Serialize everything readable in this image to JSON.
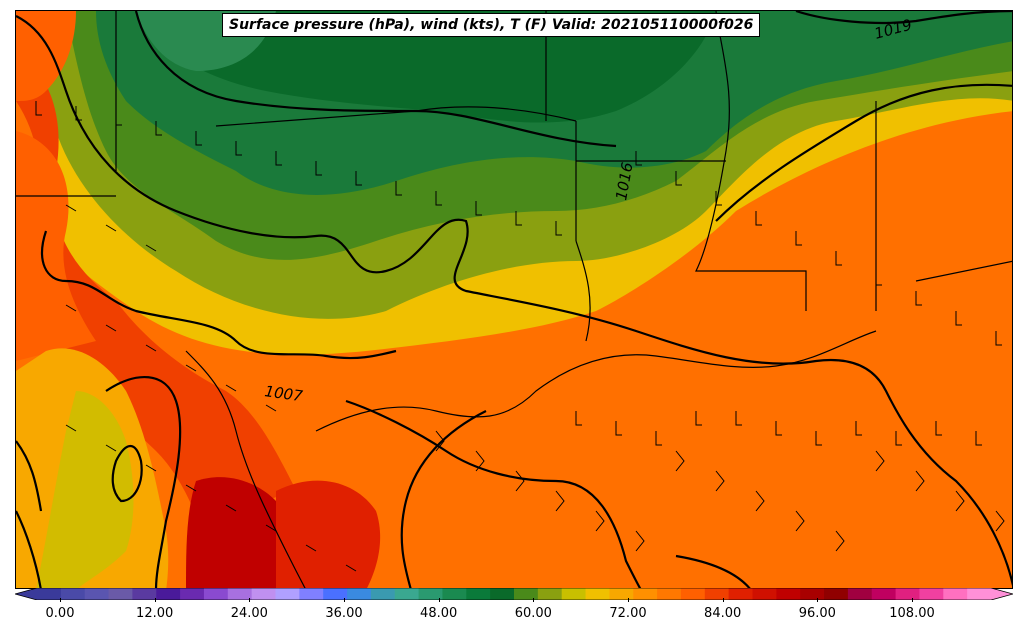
{
  "title": "Surface pressure (hPa), wind (kts), T (F) Valid: 202105110000f026",
  "colorbar": {
    "ticks": [
      "0.00",
      "12.00",
      "24.00",
      "36.00",
      "48.00",
      "60.00",
      "72.00",
      "84.00",
      "96.00",
      "108.00"
    ],
    "colors": [
      "#3a3a9a",
      "#4a4aa8",
      "#5a55b0",
      "#6a5aa8",
      "#5a3aa0",
      "#4a1a9a",
      "#6a2ab0",
      "#8a4ad0",
      "#a870e0",
      "#c090f0",
      "#b0a0ff",
      "#8080ff",
      "#4a70ff",
      "#3a8ae0",
      "#3a9ab0",
      "#3aa890",
      "#2a9a70",
      "#1a8a50",
      "#0a7a3a",
      "#0a6a2a",
      "#4a8a1a",
      "#8aa010",
      "#c8c000",
      "#f0c000",
      "#f8a800",
      "#ff9000",
      "#ff7800",
      "#ff6000",
      "#f04000",
      "#e02000",
      "#d01000",
      "#c00000",
      "#a80000",
      "#900000",
      "#a00040",
      "#c00060",
      "#e02080",
      "#f040a0",
      "#ff70c0",
      "#ff90d8"
    ]
  },
  "isobar_labels": [
    {
      "text": "1007"
    },
    {
      "text": "1016"
    },
    {
      "text": "1019"
    }
  ],
  "legend_colors": {
    "dark_green": "#0a6a2a",
    "green": "#4a8a1a",
    "olive": "#8aa010",
    "yellow": "#f0c000",
    "orange": "#ff7000",
    "red_orange": "#f04000",
    "red": "#d01000",
    "dark_red": "#b00000"
  }
}
